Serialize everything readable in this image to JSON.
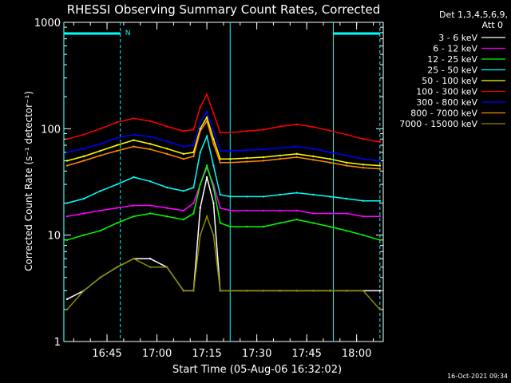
{
  "chart_data": {
    "type": "line",
    "title": "RHESSI Observing Summary Count Rates, Corrected",
    "xlabel": "Start Time (05-Aug-06 16:32:02)",
    "ylabel": "Corrected Count Rate (s⁻¹ detector⁻¹)",
    "y_scale": "log",
    "ylim": [
      1,
      1000
    ],
    "xlim": [
      "16:32:02",
      "18:08"
    ],
    "x_ticks": [
      "16:45",
      "17:00",
      "17:15",
      "17:30",
      "17:45",
      "18:00"
    ],
    "y_ticks": [
      "1",
      "10",
      "100",
      "1000"
    ],
    "grid": false,
    "legend": {
      "header": [
        "Det 1,3,4,5,6,9,",
        "Att 0"
      ],
      "position": "top-right"
    },
    "timestamp": "16-Oct-2021 09:34",
    "vlines": [
      {
        "time": "16:32",
        "color": "#00ffff",
        "style": "solid"
      },
      {
        "time": "16:49",
        "color": "#00ffff",
        "style": "dashed"
      },
      {
        "time": "17:22",
        "color": "#00ffff",
        "style": "solid"
      },
      {
        "time": "17:53",
        "color": "#00ffff",
        "style": "solid"
      },
      {
        "time": "18:07",
        "color": "#00ffff",
        "style": "dashed"
      }
    ],
    "flag_bars": [
      {
        "start": "16:32",
        "end": "16:49",
        "label": "N"
      },
      {
        "start": "17:53",
        "end": "18:07",
        "label": ""
      }
    ],
    "x_minutes_note": "x values are clock times on 05-Aug-06",
    "x": [
      "16:33",
      "16:38",
      "16:43",
      "16:48",
      "16:53",
      "16:58",
      "17:03",
      "17:08",
      "17:11",
      "17:13",
      "17:15",
      "17:17",
      "17:19",
      "17:22",
      "17:27",
      "17:32",
      "17:37",
      "17:42",
      "17:47",
      "17:52",
      "17:57",
      "18:02",
      "18:07"
    ],
    "series": [
      {
        "name": "3 - 6 keV",
        "color": "#ffffff",
        "values": [
          2.5,
          3,
          4,
          5,
          6,
          6,
          5,
          3,
          3,
          18,
          35,
          20,
          3,
          3,
          3,
          3,
          3,
          3,
          3,
          3,
          3,
          3,
          3
        ]
      },
      {
        "name": "6 - 12 keV",
        "color": "#ff00ff",
        "values": [
          15,
          16,
          17,
          18,
          19,
          19,
          18,
          17,
          20,
          30,
          43,
          30,
          18,
          17,
          17,
          17,
          17,
          17,
          16,
          16,
          16,
          15,
          15
        ]
      },
      {
        "name": "12 - 25 keV",
        "color": "#00ff00",
        "values": [
          9,
          10,
          11,
          13,
          15,
          16,
          15,
          14,
          16,
          30,
          45,
          28,
          13,
          12,
          12,
          12,
          13,
          14,
          13,
          12,
          11,
          10,
          9
        ]
      },
      {
        "name": "25 - 50 keV",
        "color": "#00ffff",
        "values": [
          20,
          22,
          26,
          30,
          35,
          32,
          28,
          26,
          28,
          60,
          85,
          45,
          24,
          23,
          23,
          23,
          24,
          25,
          24,
          23,
          22,
          21,
          21
        ]
      },
      {
        "name": "50 - 100 keV",
        "color": "#ffff00",
        "values": [
          50,
          55,
          62,
          70,
          78,
          72,
          65,
          58,
          60,
          100,
          128,
          80,
          52,
          52,
          53,
          54,
          56,
          58,
          55,
          52,
          48,
          46,
          45
        ]
      },
      {
        "name": "100 - 300 keV",
        "color": "#ff0000",
        "values": [
          80,
          88,
          100,
          115,
          125,
          118,
          105,
          95,
          98,
          160,
          210,
          140,
          92,
          92,
          95,
          98,
          105,
          110,
          104,
          96,
          88,
          80,
          75
        ]
      },
      {
        "name": "300 - 800 keV",
        "color": "#0000ff",
        "values": [
          60,
          65,
          72,
          82,
          88,
          84,
          76,
          68,
          70,
          115,
          145,
          95,
          62,
          62,
          63,
          64,
          66,
          68,
          65,
          60,
          56,
          52,
          50
        ]
      },
      {
        "name": "800 - 7000 keV",
        "color": "#ff8c00",
        "values": [
          45,
          50,
          56,
          62,
          68,
          64,
          58,
          52,
          55,
          95,
          118,
          72,
          48,
          48,
          49,
          50,
          52,
          54,
          51,
          48,
          45,
          43,
          42
        ]
      },
      {
        "name": "7000 - 15000 keV",
        "color": "#8b8b00",
        "values": [
          2,
          3,
          4,
          5,
          6,
          5,
          5,
          3,
          3,
          10,
          15,
          10,
          3,
          3,
          3,
          3,
          3,
          3,
          3,
          3,
          3,
          3,
          2
        ]
      }
    ]
  }
}
